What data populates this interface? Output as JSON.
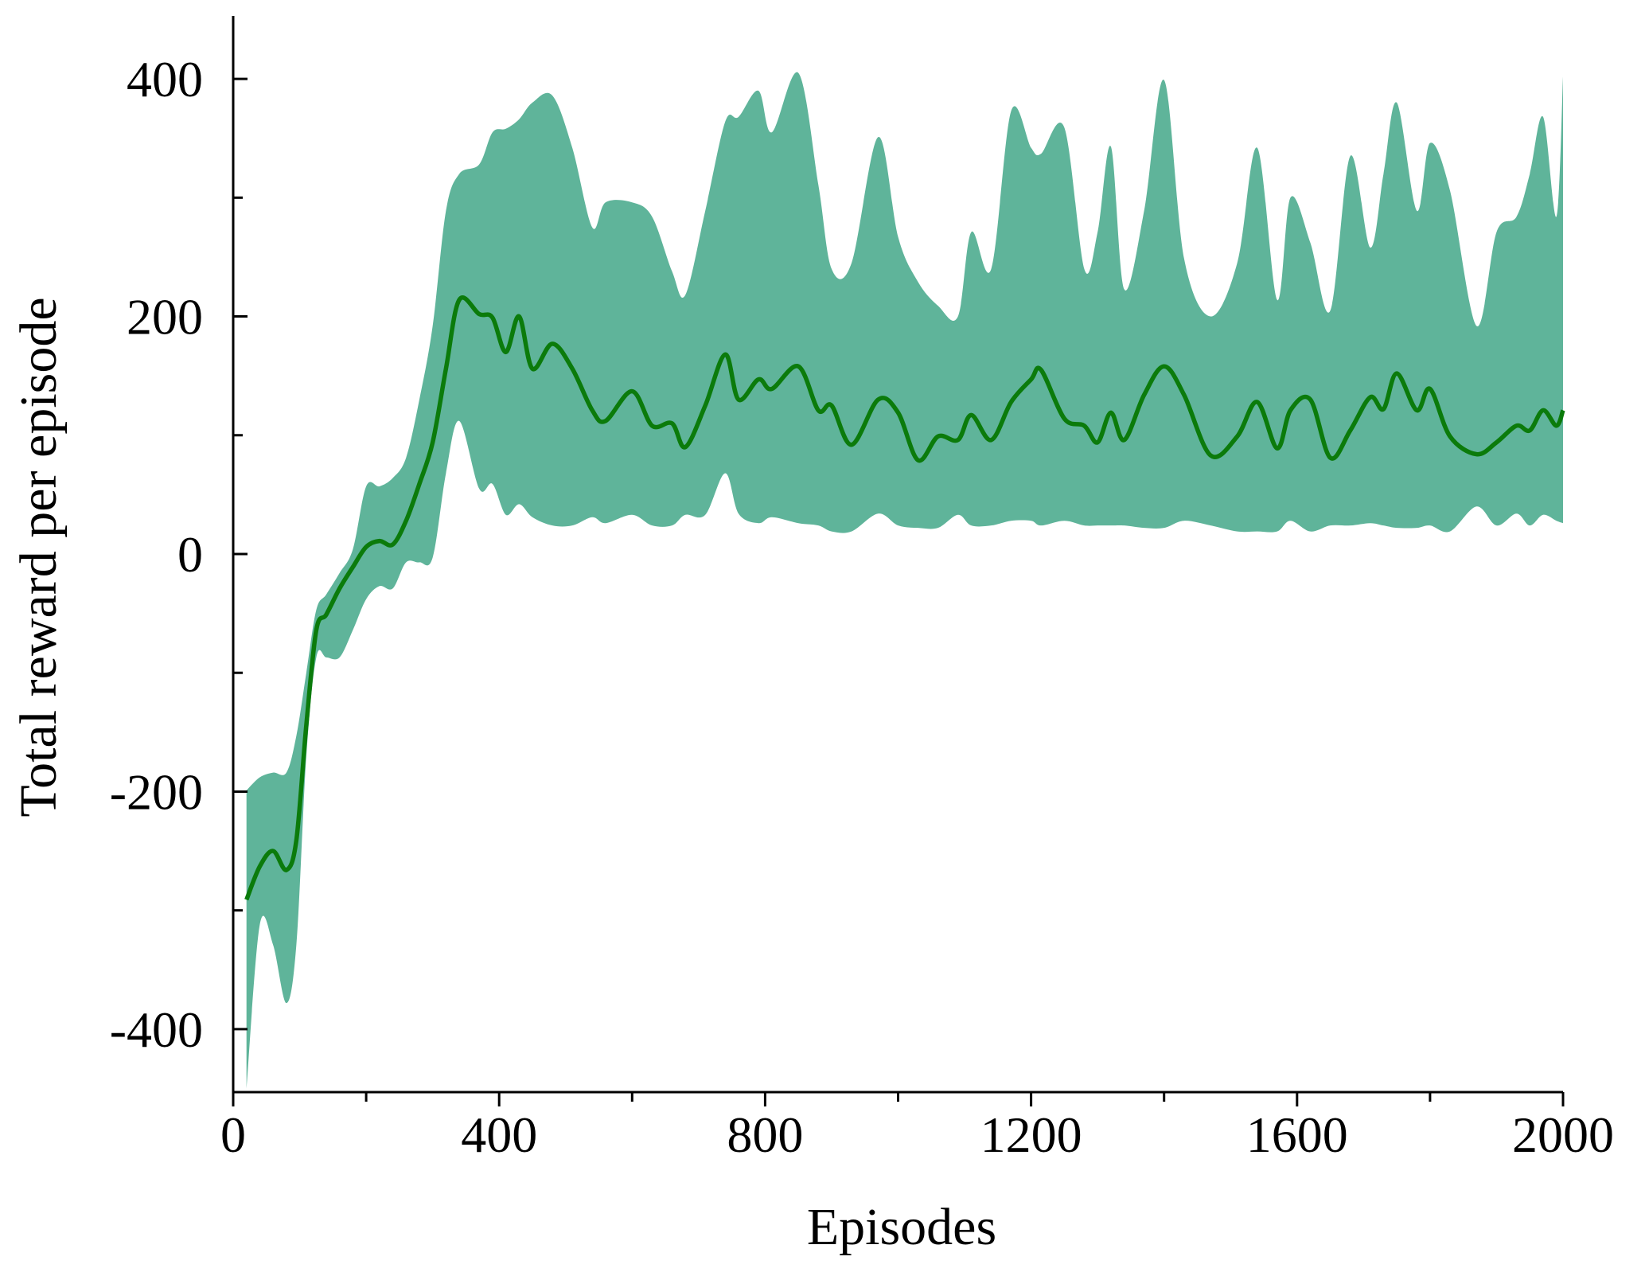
{
  "chart_data": {
    "type": "line",
    "xlabel": "Episodes",
    "ylabel": "Total reward per episode",
    "x": [
      20,
      40,
      60,
      80,
      95,
      110,
      125,
      140,
      160,
      180,
      200,
      220,
      240,
      260,
      280,
      300,
      320,
      340,
      370,
      390,
      410,
      430,
      450,
      480,
      510,
      540,
      560,
      600,
      630,
      660,
      680,
      710,
      740,
      760,
      790,
      810,
      850,
      880,
      900,
      930,
      970,
      1000,
      1030,
      1060,
      1090,
      1110,
      1140,
      1170,
      1200,
      1215,
      1250,
      1280,
      1300,
      1320,
      1340,
      1370,
      1400,
      1430,
      1470,
      1510,
      1540,
      1570,
      1590,
      1620,
      1650,
      1680,
      1710,
      1730,
      1750,
      1780,
      1800,
      1830,
      1870,
      1900,
      1930,
      1950,
      1970,
      1990,
      2000
    ],
    "series": [
      {
        "color": "#0b7b0b",
        "band_color": "#5fb49a",
        "values": [
          -291,
          -263,
          -250,
          -266,
          -241,
          -144,
          -64,
          -51,
          -29,
          -11,
          6,
          11,
          8,
          28,
          59,
          94,
          156,
          214,
          202,
          199,
          170,
          200,
          156,
          177,
          156,
          121,
          112,
          137,
          108,
          110,
          90,
          125,
          168,
          130,
          147,
          139,
          158,
          121,
          125,
          92,
          130,
          119,
          79,
          99,
          96,
          117,
          96,
          128,
          147,
          155,
          114,
          108,
          94,
          119,
          96,
          134,
          158,
          134,
          83,
          99,
          128,
          89,
          121,
          130,
          81,
          104,
          132,
          122,
          152,
          121,
          139,
          99,
          84,
          94,
          108,
          104,
          121,
          108,
          121
        ],
        "upper": [
          -199,
          -188,
          -184,
          -184,
          -153,
          -100,
          -47,
          -34,
          -16,
          4,
          57,
          57,
          64,
          81,
          130,
          192,
          289,
          320,
          328,
          355,
          358,
          366,
          380,
          386,
          342,
          275,
          296,
          296,
          284,
          238,
          218,
          289,
          364,
          368,
          390,
          355,
          405,
          311,
          240,
          245,
          351,
          267,
          229,
          209,
          200,
          271,
          240,
          373,
          342,
          337,
          359,
          240,
          271,
          343,
          223,
          289,
          399,
          249,
          200,
          245,
          342,
          214,
          300,
          262,
          205,
          335,
          258,
          320,
          380,
          289,
          346,
          306,
          192,
          271,
          284,
          320,
          368,
          284,
          402
        ],
        "lower": [
          -450,
          -312,
          -329,
          -378,
          -329,
          -170,
          -87,
          -87,
          -87,
          -64,
          -38,
          -27,
          -29,
          -7,
          -7,
          -3,
          68,
          112,
          55,
          59,
          33,
          42,
          31,
          24,
          24,
          31,
          26,
          33,
          24,
          24,
          33,
          33,
          68,
          34,
          26,
          31,
          26,
          24,
          19,
          19,
          34,
          24,
          22,
          22,
          33,
          24,
          24,
          28,
          28,
          24,
          28,
          24,
          24,
          24,
          24,
          22,
          22,
          28,
          24,
          19,
          19,
          19,
          28,
          19,
          24,
          24,
          26,
          24,
          22,
          22,
          24,
          19,
          40,
          24,
          34,
          24,
          33,
          28,
          26
        ]
      }
    ],
    "xlim": [
      0,
      2000
    ],
    "ylim": [
      -453,
      453
    ],
    "xticks": [
      0,
      400,
      800,
      1200,
      1600,
      2000
    ],
    "xminorticks": [
      200,
      600,
      1000,
      1400,
      1800
    ],
    "yticks": [
      -400,
      -200,
      0,
      200,
      400
    ],
    "yminorticks": [
      -300,
      -100,
      100,
      300
    ]
  }
}
